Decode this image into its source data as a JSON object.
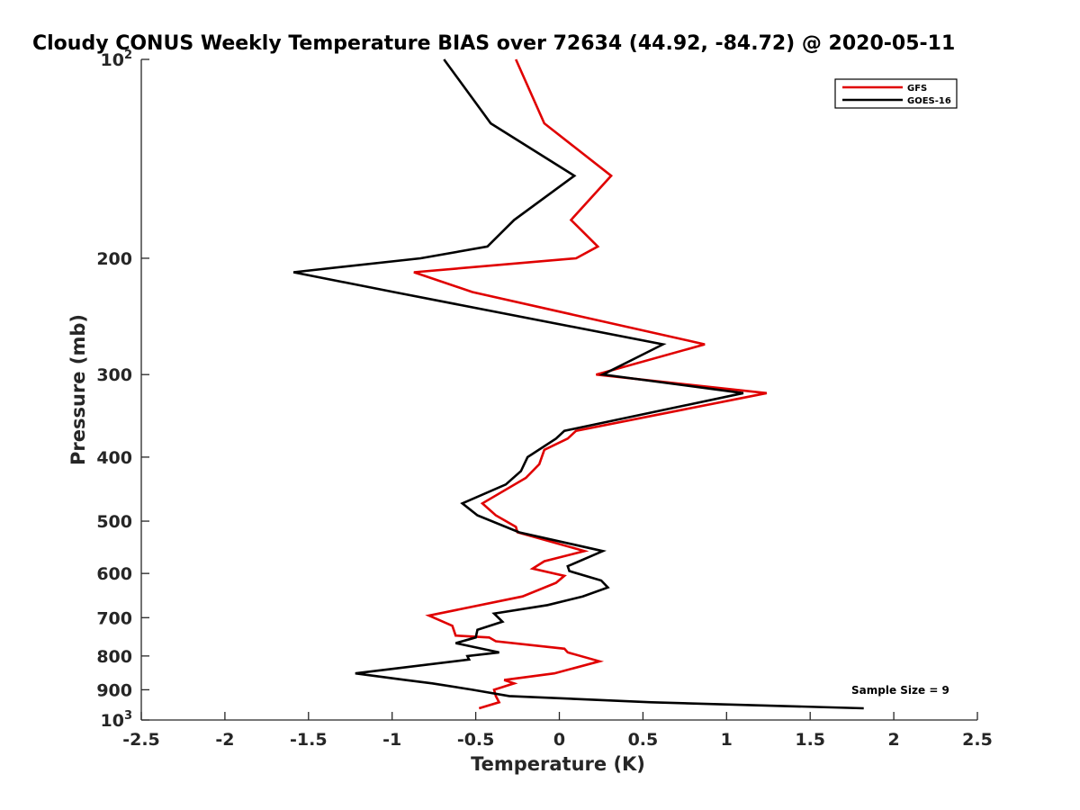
{
  "chart_data": {
    "type": "line",
    "title": "Cloudy CONUS Weekly Temperature BIAS over 72634 (44.92, -84.72) @ 2020-05-11",
    "xlabel": "Temperature (K)",
    "ylabel": "Pressure (mb)",
    "xlim": [
      -2.5,
      2.5
    ],
    "ylim": [
      100,
      1000
    ],
    "y_scale": "log",
    "y_reversed": true,
    "grid": false,
    "legend_position": "top-right",
    "x_ticks": [
      "-2.5",
      "-2",
      "-1.5",
      "-1",
      "-0.5",
      "0",
      "0.5",
      "1",
      "1.5",
      "2",
      "2.5"
    ],
    "x_tick_values": [
      -2.5,
      -2,
      -1.5,
      -1,
      -0.5,
      0,
      0.5,
      1,
      1.5,
      2,
      2.5
    ],
    "y_ticks": [
      {
        "value": 100,
        "base": "10",
        "exp": "2"
      },
      {
        "value": 200,
        "base": "200",
        "exp": ""
      },
      {
        "value": 300,
        "base": "300",
        "exp": ""
      },
      {
        "value": 400,
        "base": "400",
        "exp": ""
      },
      {
        "value": 500,
        "base": "500",
        "exp": ""
      },
      {
        "value": 600,
        "base": "600",
        "exp": ""
      },
      {
        "value": 700,
        "base": "700",
        "exp": ""
      },
      {
        "value": 800,
        "base": "800",
        "exp": ""
      },
      {
        "value": 900,
        "base": "900",
        "exp": ""
      },
      {
        "value": 1000,
        "base": "10",
        "exp": "3"
      }
    ],
    "annotation": "Sample Size = 9",
    "series": [
      {
        "name": "GFS",
        "color": "#e00000",
        "points": [
          [
            -0.26,
            100
          ],
          [
            -0.09,
            125
          ],
          [
            0.31,
            150
          ],
          [
            0.07,
            175
          ],
          [
            0.23,
            192
          ],
          [
            0.1,
            200
          ],
          [
            -0.87,
            210
          ],
          [
            -0.52,
            225
          ],
          [
            0.87,
            270
          ],
          [
            0.22,
            300
          ],
          [
            1.24,
            320
          ],
          [
            0.1,
            365
          ],
          [
            0.05,
            375
          ],
          [
            -0.09,
            390
          ],
          [
            -0.12,
            410
          ],
          [
            -0.2,
            430
          ],
          [
            -0.46,
            470
          ],
          [
            -0.38,
            490
          ],
          [
            -0.26,
            510
          ],
          [
            -0.25,
            520
          ],
          [
            0.15,
            555
          ],
          [
            -0.09,
            575
          ],
          [
            -0.16,
            590
          ],
          [
            0.03,
            605
          ],
          [
            -0.02,
            620
          ],
          [
            -0.22,
            650
          ],
          [
            -0.78,
            695
          ],
          [
            -0.64,
            720
          ],
          [
            -0.62,
            745
          ],
          [
            -0.42,
            750
          ],
          [
            -0.38,
            760
          ],
          [
            0.03,
            780
          ],
          [
            0.05,
            790
          ],
          [
            0.24,
            815
          ],
          [
            -0.03,
            850
          ],
          [
            -0.33,
            870
          ],
          [
            -0.27,
            880
          ],
          [
            -0.39,
            900
          ],
          [
            -0.38,
            920
          ],
          [
            -0.36,
            940
          ],
          [
            -0.48,
            960
          ]
        ]
      },
      {
        "name": "GOES-16",
        "color": "#000000",
        "points": [
          [
            -0.69,
            100
          ],
          [
            -0.41,
            125
          ],
          [
            0.09,
            150
          ],
          [
            -0.27,
            175
          ],
          [
            -0.43,
            192
          ],
          [
            -0.83,
            200
          ],
          [
            -1.59,
            210
          ],
          [
            -0.99,
            225
          ],
          [
            0.62,
            270
          ],
          [
            0.26,
            300
          ],
          [
            1.1,
            320
          ],
          [
            0.03,
            365
          ],
          [
            -0.02,
            375
          ],
          [
            -0.19,
            400
          ],
          [
            -0.23,
            420
          ],
          [
            -0.32,
            440
          ],
          [
            -0.58,
            470
          ],
          [
            -0.49,
            490
          ],
          [
            -0.24,
            520
          ],
          [
            0.26,
            555
          ],
          [
            0.05,
            585
          ],
          [
            0.06,
            595
          ],
          [
            0.25,
            615
          ],
          [
            0.29,
            630
          ],
          [
            0.14,
            650
          ],
          [
            -0.07,
            670
          ],
          [
            -0.39,
            690
          ],
          [
            -0.34,
            710
          ],
          [
            -0.49,
            730
          ],
          [
            -0.5,
            750
          ],
          [
            -0.62,
            765
          ],
          [
            -0.36,
            790
          ],
          [
            -0.55,
            800
          ],
          [
            -0.54,
            810
          ],
          [
            -1.22,
            850
          ],
          [
            -0.92,
            870
          ],
          [
            -0.76,
            880
          ],
          [
            -0.52,
            900
          ],
          [
            -0.3,
            920
          ],
          [
            0.55,
            940
          ],
          [
            1.82,
            960
          ]
        ]
      }
    ]
  }
}
